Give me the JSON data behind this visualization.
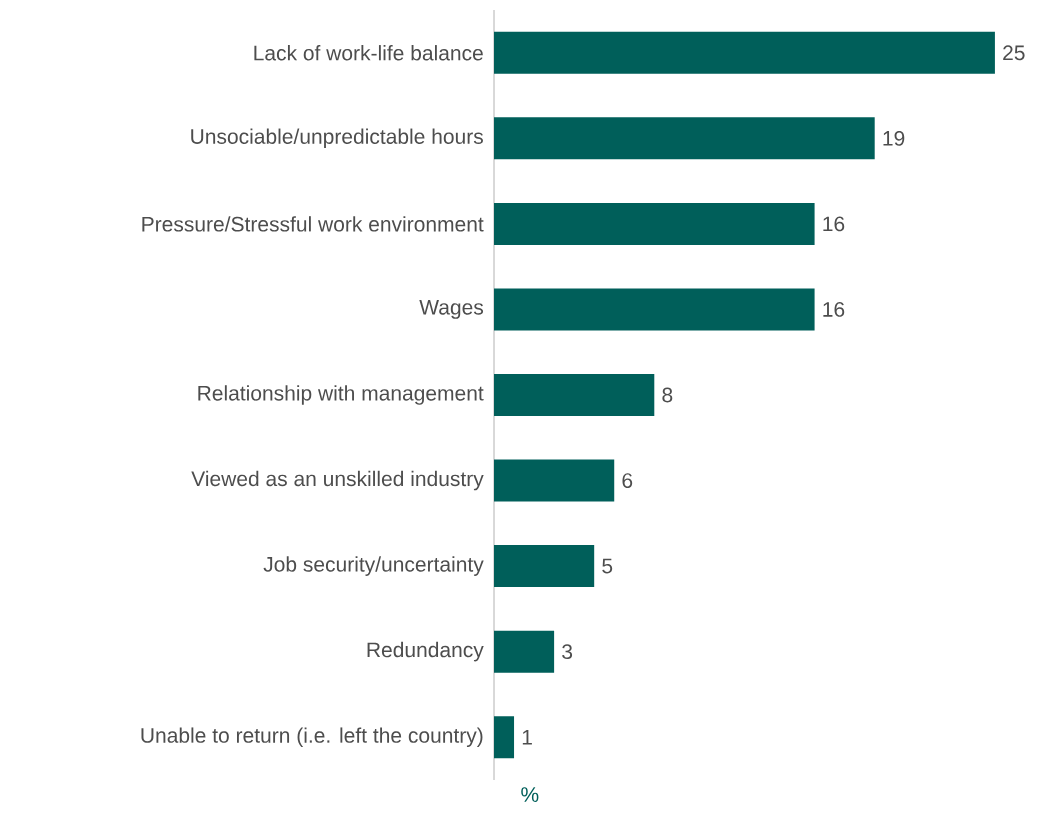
{
  "chart_data": {
    "type": "bar",
    "orientation": "horizontal",
    "xlabel": "%",
    "categories": [
      "Lack of work-life balance",
      "Unsociable/unpredictable hours",
      "Pressure/Stressful work environment",
      "Wages",
      "Relationship with management",
      "Viewed as an unskilled industry",
      "Job security/uncertainty",
      "Redundancy",
      "Unable to return (i.e. left the country)"
    ],
    "values": [
      25,
      19,
      16,
      16,
      8,
      6,
      5,
      3,
      1
    ],
    "color": "#005f5a",
    "data_labels": true,
    "tick_labels": "y"
  }
}
